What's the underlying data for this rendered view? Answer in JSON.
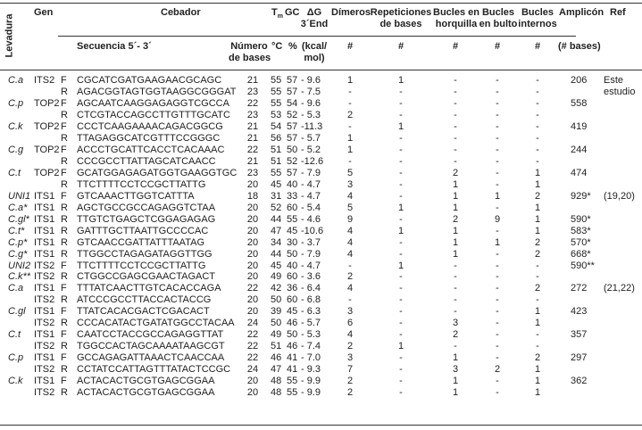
{
  "header": {
    "levadura": "Levadura",
    "gen": "Gen",
    "cebador": "Cebador",
    "tm": "T",
    "tm_sub": "m",
    "gc": "GC",
    "dg": [
      "ΔG",
      "3´End"
    ],
    "dimeros": "Dímeros",
    "repeticiones": [
      "Repeticiones",
      "de bases"
    ],
    "horquilla": [
      "Bucles en",
      "horquilla"
    ],
    "bulto": [
      "Bucles",
      "en bulto"
    ],
    "internos": [
      "Bucles",
      "internos"
    ],
    "amplicon": "Amplicón",
    "ref": "Ref",
    "secuencia": "Secuencia 5´- 3´",
    "numero": [
      "Número",
      "de bases"
    ],
    "tm_unit": "°C",
    "gc_unit": "%",
    "dg_unit": [
      "(kcal/",
      "mol)"
    ],
    "hash": "#",
    "amp_unit": "(# bases)"
  },
  "rows": [
    [
      "C.a",
      "ITS2",
      "F",
      "CGCATCGATGAAGAACGCAGC",
      "21",
      "55",
      "57",
      "- 9.6",
      "1",
      "1",
      "-",
      "-",
      "-",
      "206",
      "Este"
    ],
    [
      "",
      "",
      "R",
      "AGACGGTAGTGGTAAGGCGGGAT",
      "23",
      "55",
      "57",
      "- 7.5",
      "-",
      "-",
      "-",
      "-",
      "-",
      "",
      "estudio"
    ],
    [
      "C.p",
      "TOP2",
      "F",
      "AGCAATCAAGGAGAGGTCGCCA",
      "22",
      "55",
      "54",
      "- 9.6",
      "-",
      "-",
      "-",
      "-",
      "-",
      "558",
      ""
    ],
    [
      "",
      "",
      "R",
      "CTCGTACCAGCCTTGTTTGCATC",
      "23",
      "53",
      "52",
      "- 5.3",
      "2",
      "-",
      "-",
      "-",
      "-",
      "",
      ""
    ],
    [
      "C.k",
      "TOP2",
      "F",
      "CCCTCAAGAAAACAGACGGCG",
      "21",
      "54",
      "57",
      "-11.3",
      "-",
      "1",
      "-",
      "-",
      "-",
      "419",
      ""
    ],
    [
      "",
      "",
      "R",
      "TTAGAGGCATCGTTTCCGGGC",
      "21",
      "56",
      "57",
      "- 5.7",
      "1",
      "-",
      "-",
      "-",
      "-",
      "",
      ""
    ],
    [
      "C.g",
      "TOP2",
      "F",
      "ACCCTGCATTCACCTCACAAAC",
      "22",
      "51",
      "50",
      "- 5.2",
      "1",
      "-",
      "-",
      "-",
      "-",
      "244",
      ""
    ],
    [
      "",
      "",
      "R",
      "CCCGCCTTATTAGCATCAACC",
      "21",
      "51",
      "52",
      "-12.6",
      "-",
      "-",
      "-",
      "-",
      "-",
      "",
      ""
    ],
    [
      "C.t",
      "TOP2",
      "F",
      "GCATGGAGAGATGGTGAAGGTGC",
      "23",
      "55",
      "57",
      "- 7.9",
      "5",
      "-",
      "2",
      "-",
      "1",
      "474",
      ""
    ],
    [
      "",
      "",
      "R",
      "TTCTTTTCCTCCGCTTATTG",
      "20",
      "45",
      "40",
      "- 4.7",
      "3",
      "-",
      "1",
      "-",
      "1",
      "",
      ""
    ],
    [
      "UNI1",
      "ITS1",
      "F",
      "GTCAAACTTGGTCATTTA",
      "18",
      "31",
      "33",
      "- 4.7",
      "4",
      "-",
      "1",
      "1",
      "2",
      "929*",
      "(19,20)"
    ],
    [
      "C.a*",
      "ITS1",
      "R",
      "AGCTGCCGCCAGAGGTCTAA",
      "20",
      "52",
      "60",
      "- 5.4",
      "5",
      "1",
      "1",
      "-",
      "1",
      "",
      ""
    ],
    [
      "C.gl*",
      "ITS1",
      "R",
      "TTGTCTGAGCTCGGAGAGAG",
      "20",
      "44",
      "55",
      "- 4.6",
      "9",
      "-",
      "2",
      "9",
      "1",
      "590*",
      ""
    ],
    [
      "C.t*",
      "ITS1",
      "R",
      "GATTTGCTTAATTGCCCCAC",
      "20",
      "47",
      "45",
      "-10.6",
      "4",
      "1",
      "1",
      "-",
      "1",
      "583*",
      ""
    ],
    [
      "C.p*",
      "ITS1",
      "R",
      "GTCAACCGATTATTTAATAG",
      "20",
      "34",
      "30",
      "- 3.7",
      "4",
      "-",
      "1",
      "1",
      "2",
      "570*",
      ""
    ],
    [
      "C.g*",
      "ITS1",
      "R",
      "TTGGCCTAGAGATAGGTTGG",
      "20",
      "44",
      "50",
      "- 7.9",
      "4",
      "-",
      "1",
      "-",
      "2",
      "668*",
      ""
    ],
    [
      "UNI2",
      "ITS2",
      "F",
      "TTCTTTTCCTCCGCTTATTG",
      "20",
      "45",
      "40",
      "- 4.7",
      "-",
      "1",
      "-",
      "-",
      "-",
      "590**",
      ""
    ],
    [
      "C.k**",
      "ITS2",
      "R",
      "CTGGCCGAGCGAACTAGACT",
      "20",
      "49",
      "60",
      "- 3.6",
      "2",
      "-",
      "-",
      "-",
      "-",
      "",
      ""
    ],
    [
      "C.a",
      "ITS1",
      "F",
      "TTTATCAACTTGTCACACCAGA",
      "22",
      "42",
      "36",
      "- 6.4",
      "4",
      "-",
      "-",
      "-",
      "2",
      "272",
      "(21,22)"
    ],
    [
      "",
      "ITS2",
      "R",
      "ATCCCGCCTTACCACTACCG",
      "20",
      "50",
      "60",
      "- 6.8",
      "-",
      "-",
      "-",
      "-",
      "-",
      "",
      ""
    ],
    [
      "C.gl",
      "ITS1",
      "F",
      "TTATCACACGACTCGACACT",
      "20",
      "39",
      "45",
      "- 6.3",
      "3",
      "-",
      "-",
      "-",
      "1",
      "423",
      ""
    ],
    [
      "",
      "ITS2",
      "R",
      "CCCACATACTGATATGGCCTACAA",
      "24",
      "50",
      "46",
      "- 5.7",
      "6",
      "-",
      "3",
      "-",
      "1",
      "",
      ""
    ],
    [
      "C.t",
      "ITS1",
      "F",
      "CAATCCTACCGCCAGAGGTTAT",
      "22",
      "49",
      "50",
      "- 5.3",
      "4",
      "-",
      "2",
      "-",
      "-",
      "357",
      ""
    ],
    [
      "",
      "ITS2",
      "R",
      "TGGCCACTAGCAAAATAAGCGT",
      "22",
      "51",
      "46",
      "- 7.4",
      "2",
      "1",
      "-",
      "-",
      "-",
      "",
      ""
    ],
    [
      "C.p",
      "ITS1",
      "F",
      "GCCAGAGATTAAACTCAACCAA",
      "22",
      "46",
      "41",
      "- 7.0",
      "3",
      "-",
      "1",
      "-",
      "2",
      "297",
      ""
    ],
    [
      "",
      "ITS2",
      "R",
      "CCTATCCATTAGTTTATACTCCGC",
      "24",
      "47",
      "41",
      "- 9.3",
      "7",
      "-",
      "3",
      "2",
      "1",
      "",
      ""
    ],
    [
      "C.k",
      "ITS1",
      "F",
      "ACTACACTGCGTGAGCGGAA",
      "20",
      "48",
      "55",
      "- 9.9",
      "2",
      "-",
      "1",
      "-",
      "1",
      "362",
      ""
    ],
    [
      "",
      "ITS2",
      "R",
      "ACTACACTGCGTGAGCGGAA",
      "20",
      "48",
      "55",
      "- 9.9",
      "2",
      "-",
      "1",
      "-",
      "1",
      "",
      ""
    ]
  ]
}
